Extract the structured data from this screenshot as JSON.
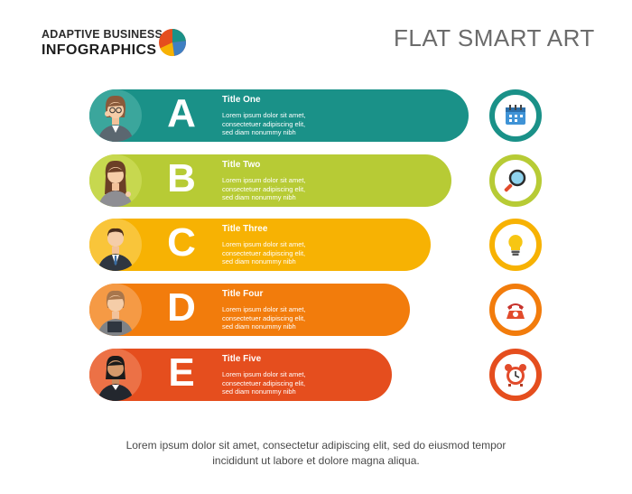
{
  "header": {
    "brand_line1": "ADAPTIVE BUSINESS",
    "brand_line2": "INFOGRAPHICS",
    "title": "FLAT SMART ART"
  },
  "rows": [
    {
      "letter": "A",
      "title": "Title One",
      "desc": [
        "Lorem ipsum dolor sit amet,",
        "consectetuer adipiscing elit,",
        "sed diam nonummy nibh"
      ],
      "color": "#1a9188",
      "icon": "calendar-icon"
    },
    {
      "letter": "B",
      "title": "Title Two",
      "desc": [
        "Lorem ipsum dolor sit amet,",
        "consectetuer adipiscing elit,",
        "sed diam nonummy nibh"
      ],
      "color": "#b7cb35",
      "icon": "magnifier-icon"
    },
    {
      "letter": "C",
      "title": "Title Three",
      "desc": [
        "Lorem ipsum dolor sit amet,",
        "consectetuer adipiscing elit,",
        "sed diam nonummy nibh"
      ],
      "color": "#f7b203",
      "icon": "lightbulb-icon"
    },
    {
      "letter": "D",
      "title": "Title Four",
      "desc": [
        "Lorem ipsum dolor sit amet,",
        "consectetuer adipiscing elit,",
        "sed diam nonummy nibh"
      ],
      "color": "#f27c0c",
      "icon": "telephone-icon"
    },
    {
      "letter": "E",
      "title": "Title Five",
      "desc": [
        "Lorem ipsum dolor sit amet,",
        "consectetuer adipiscing elit,",
        "sed diam nonummy nibh"
      ],
      "color": "#e54e1e",
      "icon": "alarm-clock-icon"
    }
  ],
  "footer": {
    "line1": "Lorem ipsum dolor sit amet, consectetur adipiscing elit, sed do eiusmod tempor",
    "line2": "incididunt ut labore et dolore magna aliqua."
  }
}
